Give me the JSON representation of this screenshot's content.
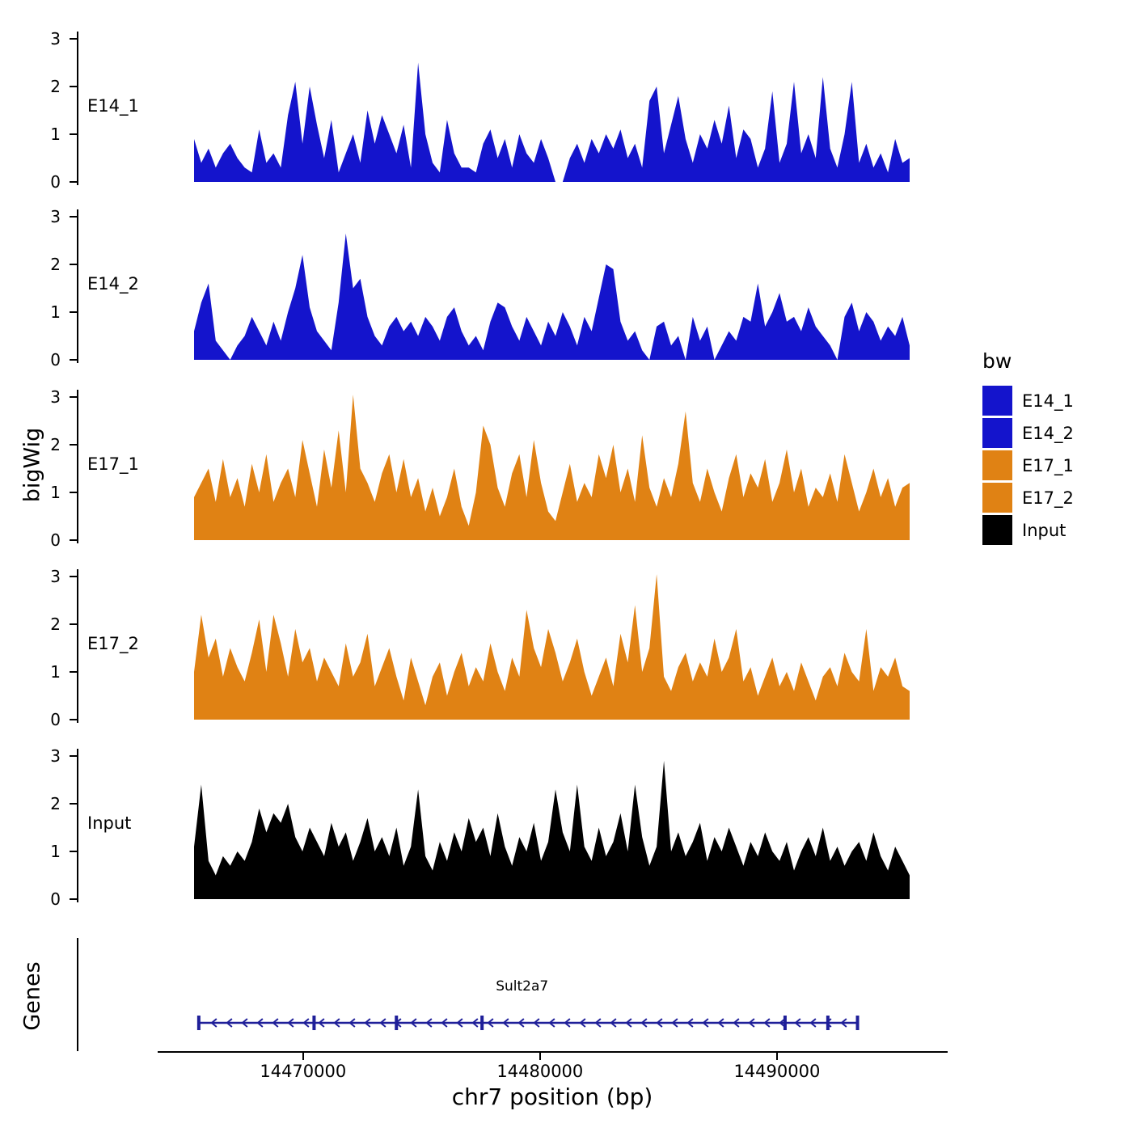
{
  "colors": {
    "blue": "#1414CC",
    "orange": "#E08214",
    "black": "#000000",
    "gene": "#1F1F99"
  },
  "chart_data": {
    "type": "area",
    "title": "",
    "xlabel": "chr7 position (bp)",
    "ylabel": "bigWig",
    "x_domain": [
      14465400,
      14495600
    ],
    "x_ticks": [
      14470000,
      14480000,
      14490000
    ],
    "x_tick_labels": [
      "14470000",
      "14480000",
      "14490000"
    ],
    "y_ticks": [
      0,
      1,
      2,
      3
    ],
    "y_tick_labels": [
      "0",
      "1",
      "2",
      "3"
    ],
    "ylim": [
      0,
      3.2
    ],
    "grid": false,
    "legend_position": "right",
    "legend": {
      "title": "bw",
      "items": [
        {
          "label": "E14_1",
          "color": "blue"
        },
        {
          "label": "E14_2",
          "color": "blue"
        },
        {
          "label": "E17_1",
          "color": "orange"
        },
        {
          "label": "E17_2",
          "color": "orange"
        },
        {
          "label": "Input",
          "color": "black"
        }
      ]
    },
    "series": [
      {
        "name": "E14_1",
        "color": "blue",
        "values": [
          0.9,
          0.4,
          0.7,
          0.3,
          0.6,
          0.8,
          0.5,
          0.3,
          0.2,
          1.1,
          0.4,
          0.6,
          0.3,
          1.4,
          2.1,
          0.8,
          2.0,
          1.2,
          0.5,
          1.3,
          0.2,
          0.6,
          1.0,
          0.4,
          1.5,
          0.8,
          1.4,
          1.0,
          0.6,
          1.2,
          0.3,
          2.5,
          1.0,
          0.4,
          0.2,
          1.3,
          0.6,
          0.3,
          0.3,
          0.2,
          0.8,
          1.1,
          0.5,
          0.9,
          0.3,
          1.0,
          0.6,
          0.4,
          0.9,
          0.5,
          0.0,
          0.0,
          0.5,
          0.8,
          0.4,
          0.9,
          0.6,
          1.0,
          0.7,
          1.1,
          0.5,
          0.8,
          0.3,
          1.7,
          2.0,
          0.6,
          1.2,
          1.8,
          0.9,
          0.4,
          1.0,
          0.7,
          1.3,
          0.8,
          1.6,
          0.5,
          1.1,
          0.9,
          0.3,
          0.7,
          1.9,
          0.4,
          0.8,
          2.1,
          0.6,
          1.0,
          0.5,
          2.2,
          0.7,
          0.3,
          1.0,
          2.1,
          0.4,
          0.8,
          0.3,
          0.6,
          0.2,
          0.9,
          0.4,
          0.5
        ]
      },
      {
        "name": "E14_2",
        "color": "blue",
        "values": [
          0.6,
          1.2,
          1.6,
          0.4,
          0.2,
          0.0,
          0.3,
          0.5,
          0.9,
          0.6,
          0.3,
          0.8,
          0.4,
          1.0,
          1.5,
          2.2,
          1.1,
          0.6,
          0.4,
          0.2,
          1.2,
          2.65,
          1.5,
          1.7,
          0.9,
          0.5,
          0.3,
          0.7,
          0.9,
          0.6,
          0.8,
          0.5,
          0.9,
          0.7,
          0.4,
          0.9,
          1.1,
          0.6,
          0.3,
          0.5,
          0.2,
          0.8,
          1.2,
          1.1,
          0.7,
          0.4,
          0.9,
          0.6,
          0.3,
          0.8,
          0.5,
          1.0,
          0.7,
          0.3,
          0.9,
          0.6,
          1.3,
          2.0,
          1.9,
          0.8,
          0.4,
          0.6,
          0.2,
          0.0,
          0.7,
          0.8,
          0.3,
          0.5,
          0.0,
          0.9,
          0.4,
          0.7,
          0.0,
          0.3,
          0.6,
          0.4,
          0.9,
          0.8,
          1.6,
          0.7,
          1.0,
          1.4,
          0.8,
          0.9,
          0.6,
          1.1,
          0.7,
          0.5,
          0.3,
          0.0,
          0.9,
          1.2,
          0.6,
          1.0,
          0.8,
          0.4,
          0.7,
          0.5,
          0.9,
          0.3
        ]
      },
      {
        "name": "E17_1",
        "color": "orange",
        "values": [
          0.9,
          1.2,
          1.5,
          0.8,
          1.7,
          0.9,
          1.3,
          0.7,
          1.6,
          1.0,
          1.8,
          0.8,
          1.2,
          1.5,
          0.9,
          2.1,
          1.4,
          0.7,
          1.9,
          1.1,
          2.3,
          1.0,
          3.05,
          1.5,
          1.2,
          0.8,
          1.4,
          1.8,
          1.0,
          1.7,
          0.9,
          1.3,
          0.6,
          1.1,
          0.5,
          0.9,
          1.5,
          0.7,
          0.3,
          1.0,
          2.4,
          2.0,
          1.1,
          0.7,
          1.4,
          1.8,
          0.9,
          2.1,
          1.2,
          0.6,
          0.4,
          1.0,
          1.6,
          0.8,
          1.2,
          0.9,
          1.8,
          1.3,
          2.0,
          1.0,
          1.5,
          0.8,
          2.2,
          1.1,
          0.7,
          1.3,
          0.9,
          1.6,
          2.7,
          1.2,
          0.8,
          1.5,
          1.0,
          0.6,
          1.3,
          1.8,
          0.9,
          1.4,
          1.1,
          1.7,
          0.8,
          1.2,
          1.9,
          1.0,
          1.5,
          0.7,
          1.1,
          0.9,
          1.4,
          0.8,
          1.8,
          1.2,
          0.6,
          1.0,
          1.5,
          0.9,
          1.3,
          0.7,
          1.1,
          1.2
        ]
      },
      {
        "name": "E17_2",
        "color": "orange",
        "values": [
          1.0,
          2.2,
          1.3,
          1.7,
          0.9,
          1.5,
          1.1,
          0.8,
          1.4,
          2.1,
          1.0,
          2.2,
          1.6,
          0.9,
          1.9,
          1.2,
          1.5,
          0.8,
          1.3,
          1.0,
          0.7,
          1.6,
          0.9,
          1.2,
          1.8,
          0.7,
          1.1,
          1.5,
          0.9,
          0.4,
          1.3,
          0.8,
          0.3,
          0.9,
          1.2,
          0.5,
          1.0,
          1.4,
          0.7,
          1.1,
          0.8,
          1.6,
          1.0,
          0.6,
          1.3,
          0.9,
          2.3,
          1.5,
          1.1,
          1.9,
          1.4,
          0.8,
          1.2,
          1.7,
          1.0,
          0.5,
          0.9,
          1.3,
          0.7,
          1.8,
          1.2,
          2.4,
          1.0,
          1.5,
          3.05,
          0.9,
          0.6,
          1.1,
          1.4,
          0.8,
          1.2,
          0.9,
          1.7,
          1.0,
          1.3,
          1.9,
          0.8,
          1.1,
          0.5,
          0.9,
          1.3,
          0.7,
          1.0,
          0.6,
          1.2,
          0.8,
          0.4,
          0.9,
          1.1,
          0.7,
          1.4,
          1.0,
          0.8,
          1.9,
          0.6,
          1.1,
          0.9,
          1.3,
          0.7,
          0.6
        ]
      },
      {
        "name": "Input",
        "color": "black",
        "values": [
          1.1,
          2.4,
          0.8,
          0.5,
          0.9,
          0.7,
          1.0,
          0.8,
          1.2,
          1.9,
          1.4,
          1.8,
          1.6,
          2.0,
          1.3,
          1.0,
          1.5,
          1.2,
          0.9,
          1.6,
          1.1,
          1.4,
          0.8,
          1.2,
          1.7,
          1.0,
          1.3,
          0.9,
          1.5,
          0.7,
          1.1,
          2.3,
          0.9,
          0.6,
          1.2,
          0.8,
          1.4,
          1.0,
          1.7,
          1.2,
          1.5,
          0.9,
          1.8,
          1.1,
          0.7,
          1.3,
          1.0,
          1.6,
          0.8,
          1.2,
          2.3,
          1.4,
          1.0,
          2.4,
          1.1,
          0.8,
          1.5,
          0.9,
          1.2,
          1.8,
          1.0,
          2.4,
          1.3,
          0.7,
          1.1,
          2.9,
          1.0,
          1.4,
          0.9,
          1.2,
          1.6,
          0.8,
          1.3,
          1.0,
          1.5,
          1.1,
          0.7,
          1.2,
          0.9,
          1.4,
          1.0,
          0.8,
          1.2,
          0.6,
          1.0,
          1.3,
          0.9,
          1.5,
          0.8,
          1.1,
          0.7,
          1.0,
          1.2,
          0.8,
          1.4,
          0.9,
          0.6,
          1.1,
          0.8,
          0.5
        ]
      }
    ],
    "gene_track": {
      "panel_label": "Genes",
      "gene_name": "Sult2a7",
      "start_bp": 14465600,
      "end_bp": 14493400,
      "strand": "-",
      "exon_fractions": [
        0.0,
        0.175,
        0.3,
        0.43,
        0.89,
        0.955,
        1.0
      ]
    }
  }
}
